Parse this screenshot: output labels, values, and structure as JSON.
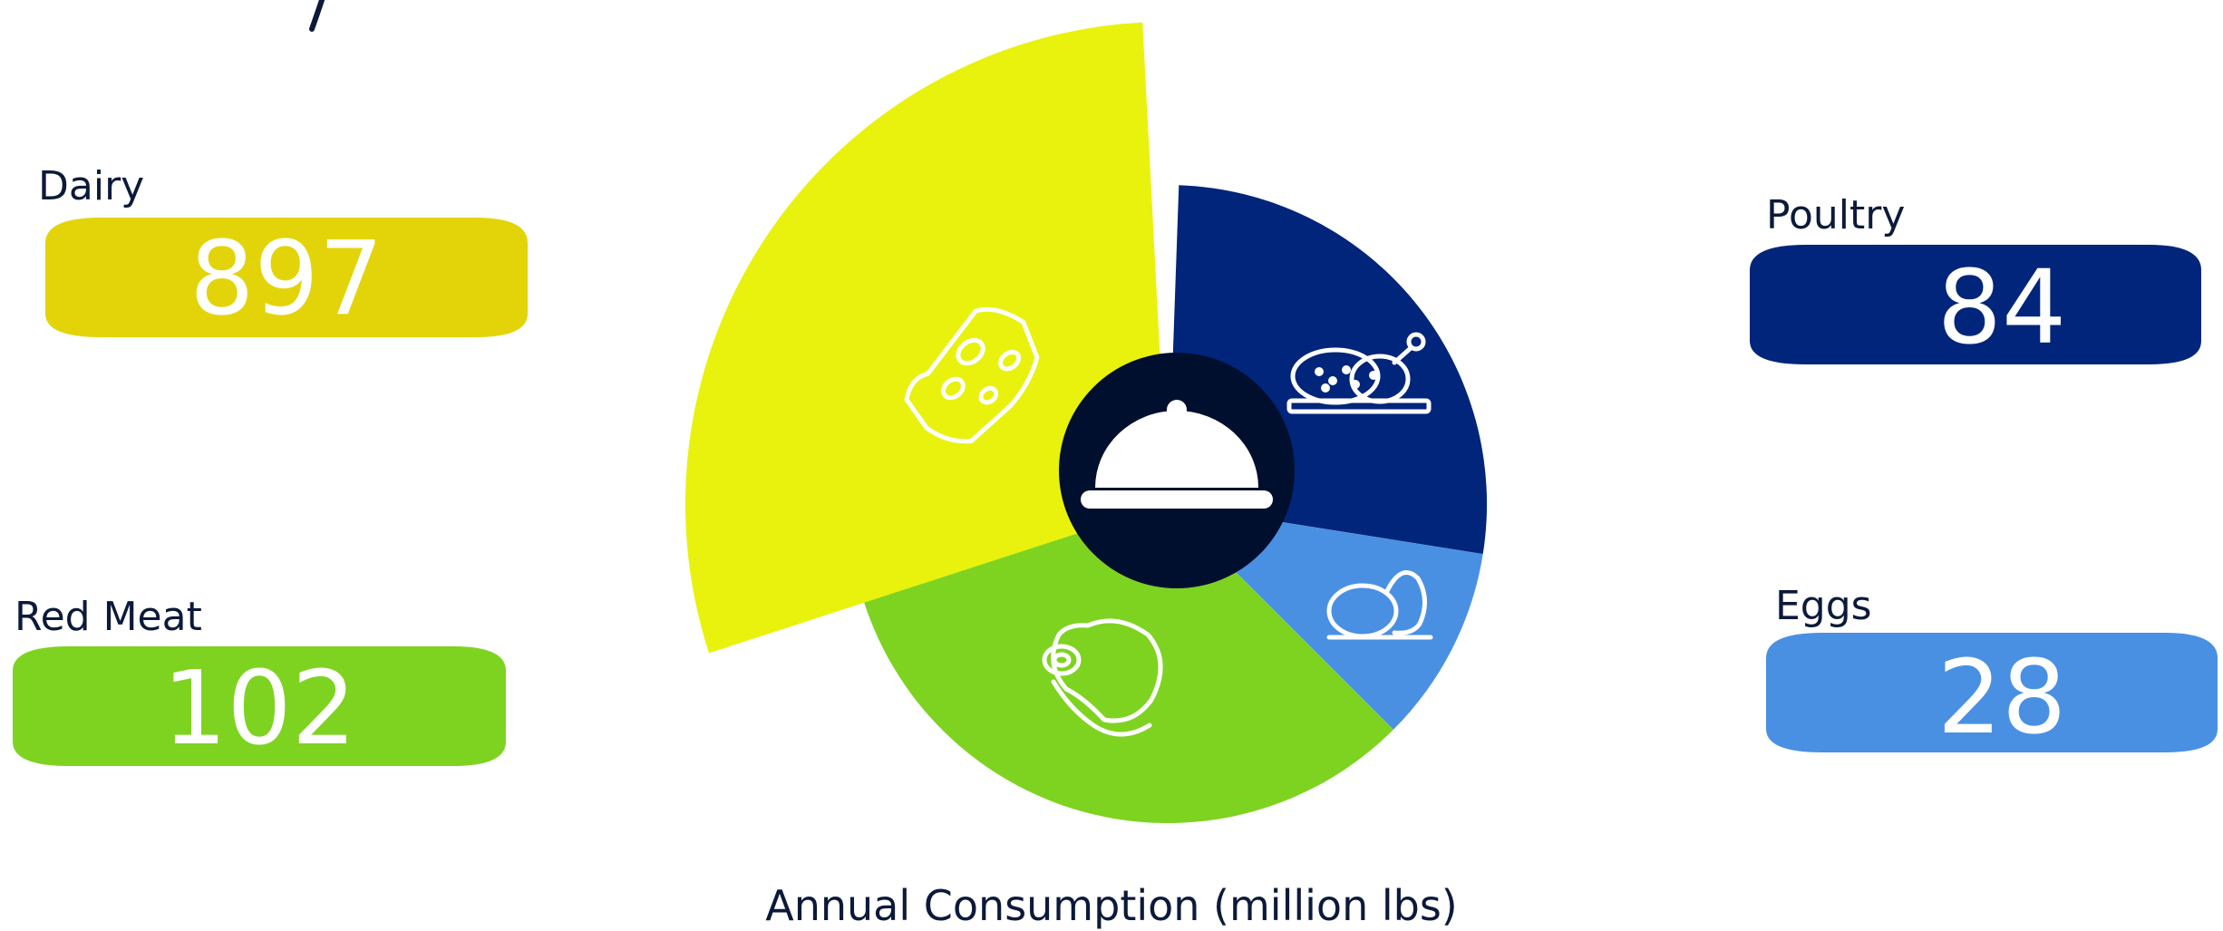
{
  "chart_data": {
    "type": "pie",
    "title": "",
    "xlabel": "Annual Consumption (million lbs)",
    "ylabel": "",
    "legend": "none",
    "grid": false,
    "categories": [
      "Dairy",
      "Poultry",
      "Eggs",
      "Red Meat"
    ],
    "values": [
      897,
      84,
      28,
      102
    ],
    "series": [
      {
        "name": "Dairy",
        "value": 897,
        "value_label": "897",
        "color": "#e9f20c",
        "badge_color": "#e3d409",
        "icon": "cheese-icon"
      },
      {
        "name": "Poultry",
        "value": 84,
        "value_label": "84",
        "color": "#00257a",
        "badge_color": "#00257a",
        "icon": "roast-chicken-icon"
      },
      {
        "name": "Eggs",
        "value": 28,
        "value_label": "28",
        "color": "#4a90e2",
        "badge_color": "#4a90e2",
        "icon": "eggs-icon"
      },
      {
        "name": "Red Meat",
        "value": 102,
        "value_label": "102",
        "color": "#7ed321",
        "badge_color": "#7ed321",
        "icon": "steak-icon"
      }
    ],
    "center_icon": "serving-cloche-icon",
    "center_color": "#000f2e"
  }
}
